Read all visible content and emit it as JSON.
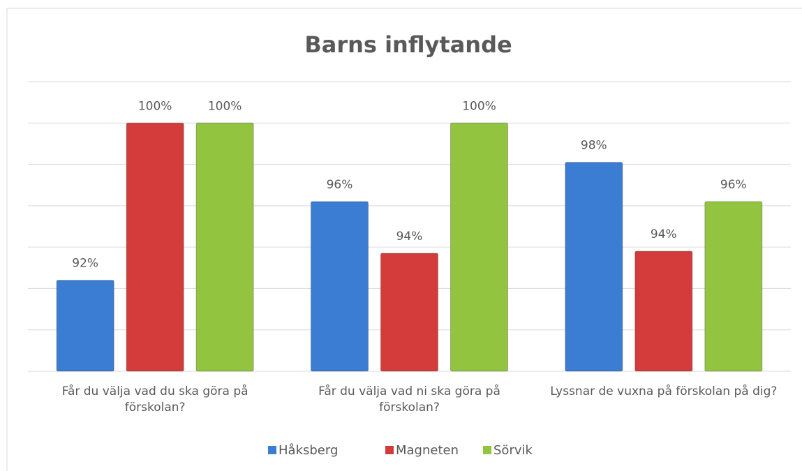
{
  "chart_data": {
    "type": "bar",
    "title": "Barns inflytande",
    "categories": [
      "Får du välja vad du ska göra på förskolan?",
      "Får du välja vad ni ska göra på förskolan?",
      "Lyssnar de vuxna på förskolan på dig?"
    ],
    "series": [
      {
        "name": "Håksberg",
        "color": "#3b7dd3",
        "values": [
          92.4,
          96.2,
          98.1
        ],
        "value_labels": [
          "92%",
          "96%",
          "98%"
        ]
      },
      {
        "name": "Magneten",
        "color": "#d43c3c",
        "values": [
          100,
          93.7,
          93.8
        ],
        "value_labels": [
          "100%",
          "94%",
          "94%"
        ]
      },
      {
        "name": "Sörvik",
        "color": "#93c43f",
        "values": [
          100,
          100,
          96.2
        ],
        "value_labels": [
          "100%",
          "100%",
          "96%"
        ]
      }
    ],
    "ylim": [
      88,
      102
    ],
    "yticks": [
      88,
      90,
      92,
      94,
      96,
      98,
      100,
      102
    ],
    "grid": true,
    "legend": "bottom"
  }
}
